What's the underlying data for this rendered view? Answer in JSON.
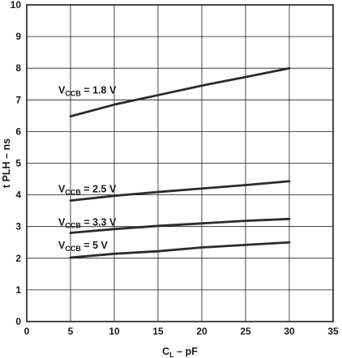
{
  "chart_data": {
    "type": "line",
    "xlabel": {
      "main": "C",
      "sub": "L",
      "rest": " – pF"
    },
    "ylabel": "t PLH – ns",
    "xlim": [
      0,
      35
    ],
    "ylim": [
      0,
      10
    ],
    "x_ticks": [
      0,
      5,
      10,
      15,
      20,
      25,
      30,
      35
    ],
    "y_ticks": [
      0,
      1,
      2,
      3,
      4,
      5,
      6,
      7,
      8,
      9,
      10
    ],
    "grid": true,
    "series": [
      {
        "label_main": "V",
        "label_sub": "CCB",
        "label_rest": " = 1.8 V",
        "x": [
          5,
          10,
          15,
          20,
          25,
          30
        ],
        "y": [
          6.48,
          6.85,
          7.15,
          7.45,
          7.72,
          8.0
        ]
      },
      {
        "label_main": "V",
        "label_sub": "CCB",
        "label_rest": " = 2.5 V",
        "x": [
          5,
          10,
          15,
          20,
          25,
          30
        ],
        "y": [
          3.82,
          3.97,
          4.09,
          4.2,
          4.31,
          4.43
        ]
      },
      {
        "label_main": "V",
        "label_sub": "CCB",
        "label_rest": " = 3.3 V",
        "x": [
          5,
          10,
          15,
          20,
          25,
          30
        ],
        "y": [
          2.8,
          2.92,
          3.02,
          3.1,
          3.18,
          3.24
        ]
      },
      {
        "label_main": "V",
        "label_sub": "CCB",
        "label_rest": " = 5 V",
        "x": [
          5,
          10,
          15,
          20,
          25,
          30
        ],
        "y": [
          2.02,
          2.14,
          2.22,
          2.34,
          2.42,
          2.5
        ]
      }
    ]
  }
}
